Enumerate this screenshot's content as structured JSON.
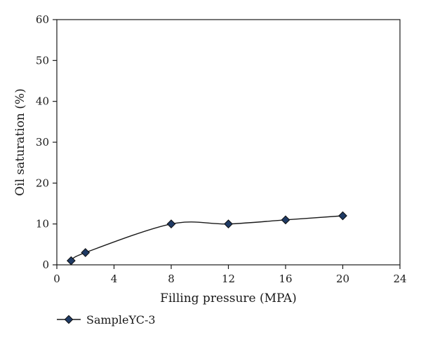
{
  "chart_data": {
    "type": "line",
    "title": "",
    "xlabel": "Filling pressure (MPA)",
    "ylabel": "Oil saturation (%)",
    "xlim": [
      0,
      24
    ],
    "ylim": [
      0,
      60
    ],
    "xticks": [
      0,
      4,
      8,
      12,
      16,
      20,
      24
    ],
    "yticks": [
      0,
      10,
      20,
      30,
      40,
      50,
      60
    ],
    "grid": false,
    "legend_position": "bottom-left",
    "series": [
      {
        "name": "SampleYC-3",
        "marker": "diamond",
        "line": "smooth",
        "color": "#1a1a1a",
        "marker_color": "#1f3a64",
        "x": [
          1,
          2,
          8,
          12,
          16,
          20
        ],
        "y": [
          1,
          3,
          10,
          10,
          11,
          12
        ]
      }
    ]
  }
}
